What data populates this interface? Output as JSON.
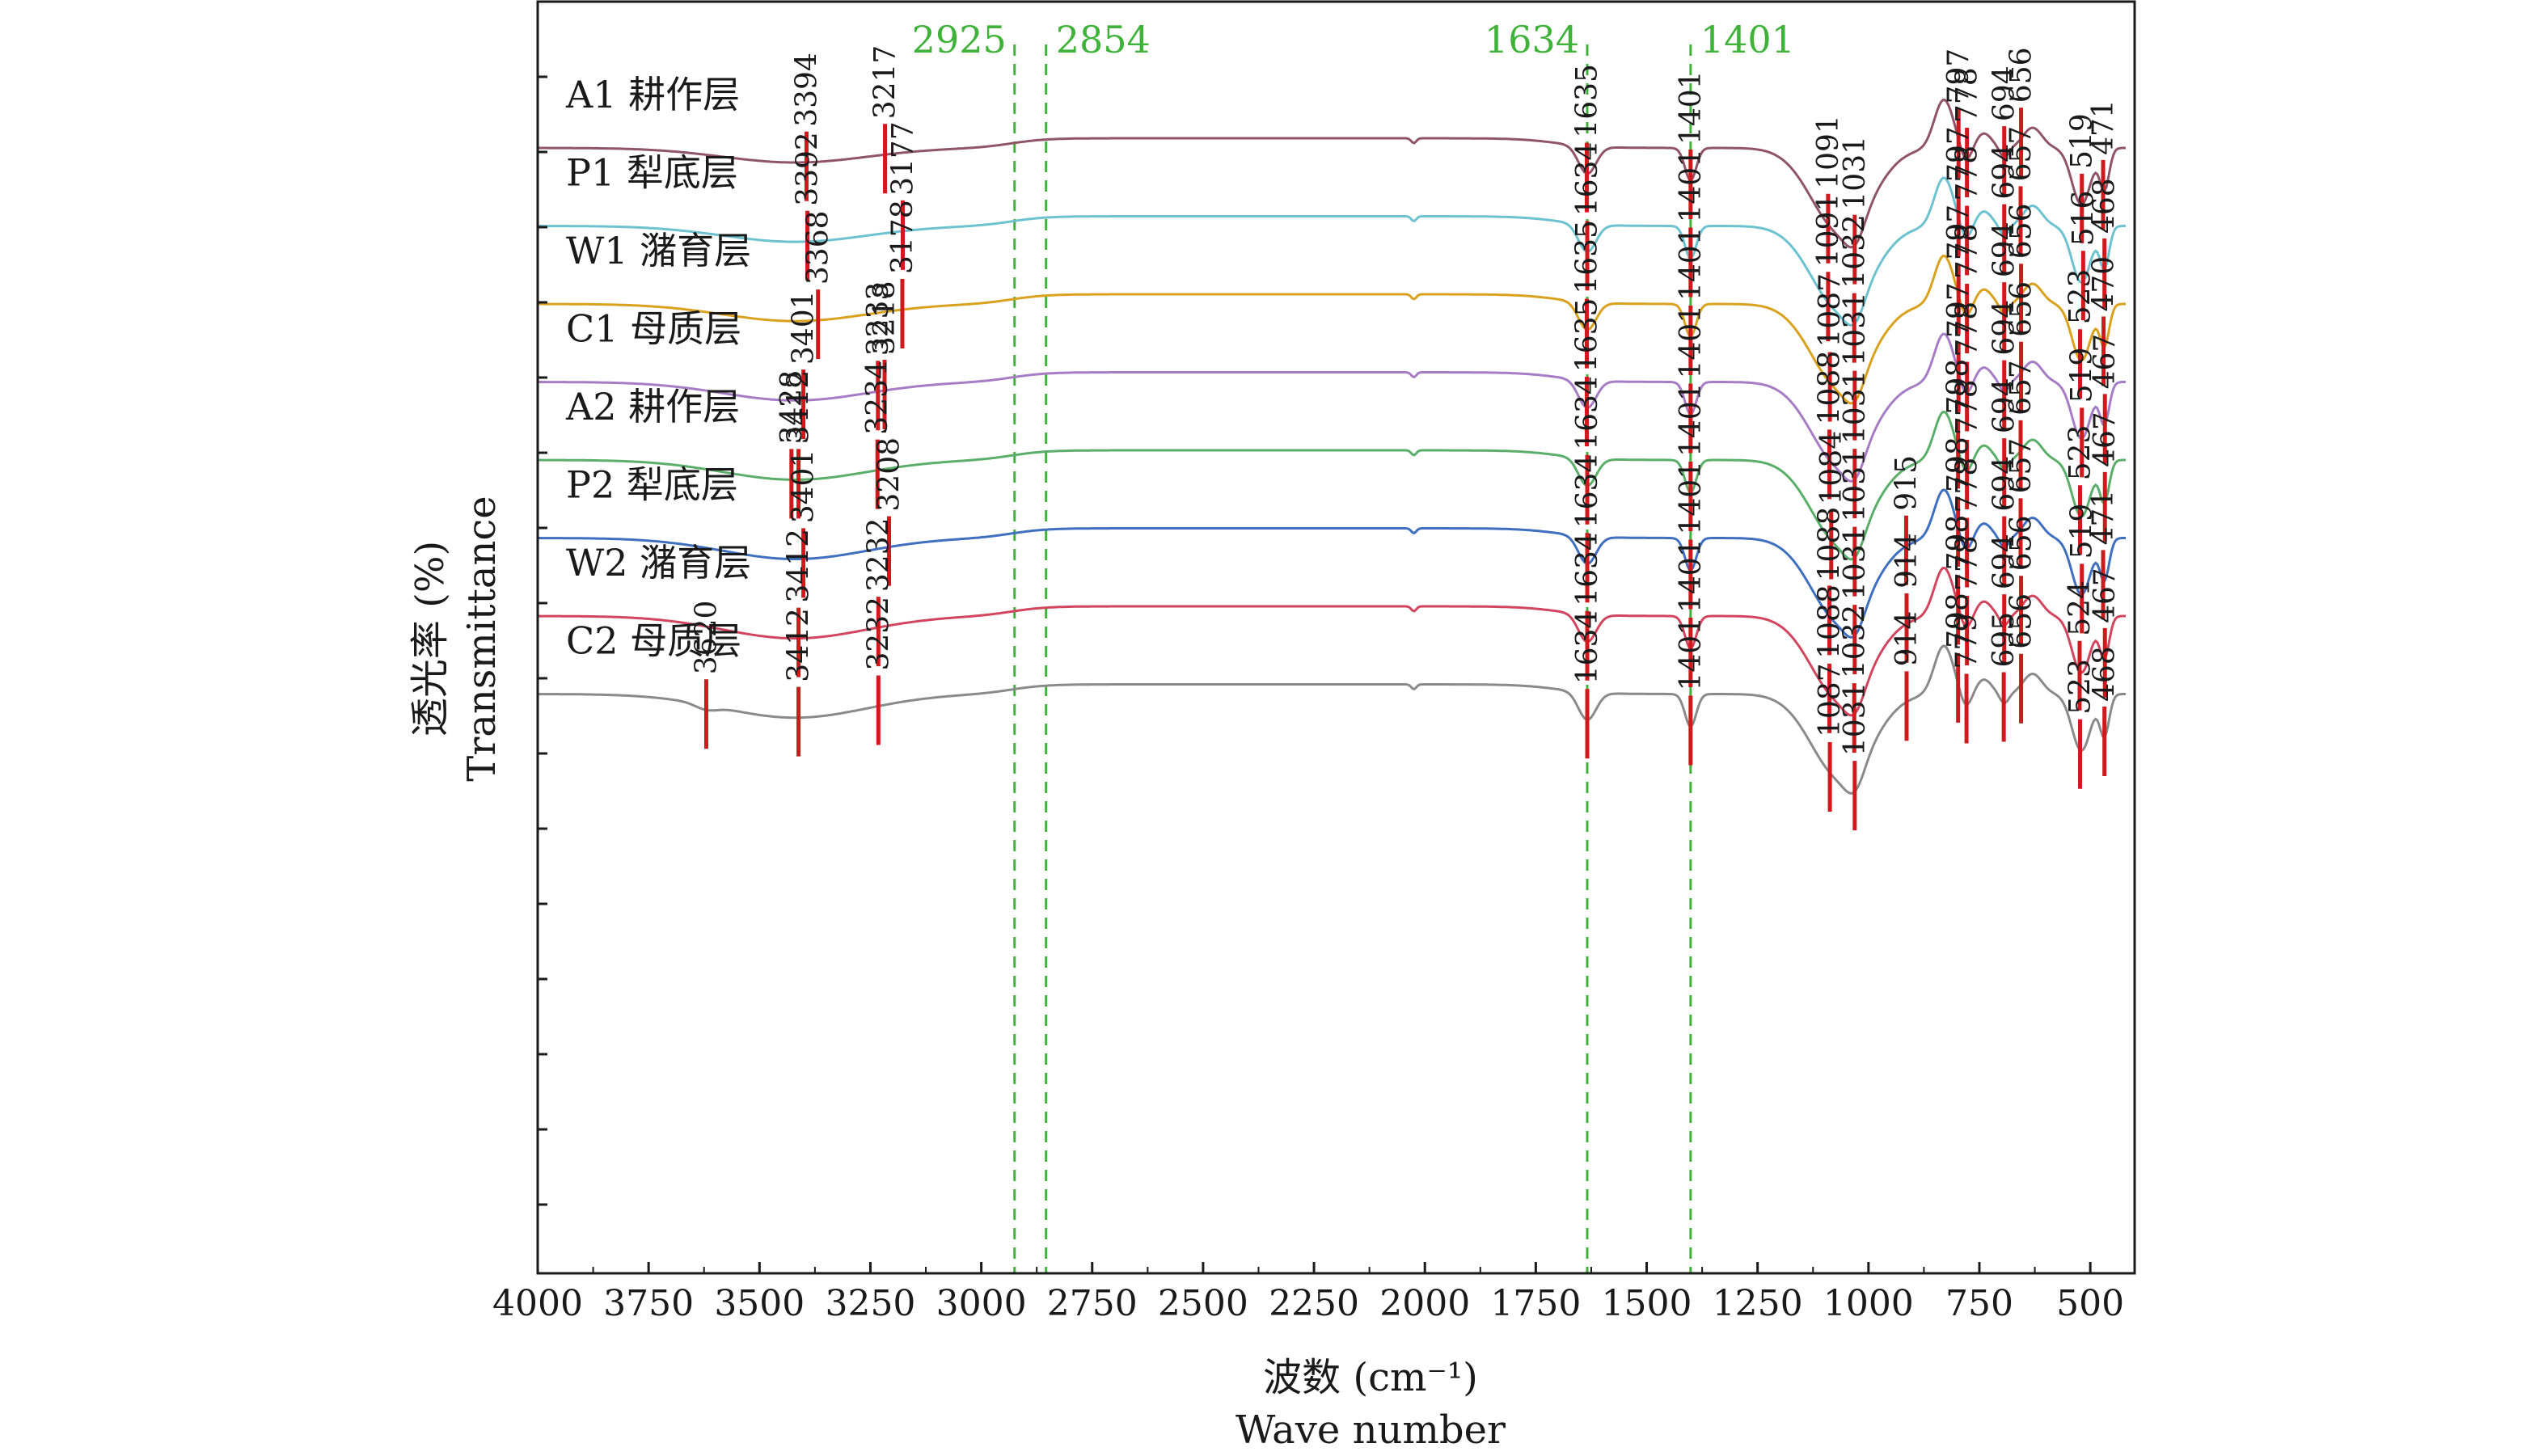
{
  "chart_data": {
    "type": "line",
    "xlabel_cn": "波数 (cm⁻¹)",
    "xlabel_en": "Wave number",
    "ylabel_cn": "透光率 (%)",
    "ylabel_en": "Transmittance",
    "xlim": [
      4000,
      400
    ],
    "x_reversed": true,
    "x_ticks": [
      4000,
      3750,
      3500,
      3250,
      3000,
      2750,
      2500,
      2250,
      2000,
      1750,
      1500,
      1250,
      1000,
      750,
      500
    ],
    "x_tick_labels": [
      "4000",
      "3750",
      "3500",
      "3250",
      "3000",
      "2750",
      "2500",
      "2250",
      "2000",
      "1750",
      "1500",
      "1250",
      "1000",
      "750",
      "500"
    ],
    "y_tick_count": 16,
    "grid": false,
    "reference_lines": [
      {
        "x": 2925,
        "label": "2925",
        "color": "#3fb23a"
      },
      {
        "x": 2854,
        "label": "2854",
        "color": "#3fb23a"
      },
      {
        "x": 1634,
        "label": "1634",
        "color": "#3fb23a"
      },
      {
        "x": 1401,
        "label": "1401",
        "color": "#3fb23a"
      }
    ],
    "series": [
      {
        "name": "A1 耕作层",
        "color": "#8f5566",
        "offset": 0,
        "peaks": [
          "3394",
          "3217",
          "1635",
          "1401",
          "1091",
          "1031",
          "797",
          "778",
          "694",
          "656",
          "519",
          "471"
        ]
      },
      {
        "name": "P1 犁底层",
        "color": "#6cc2cf",
        "offset": 1,
        "peaks": [
          "3392",
          "3177",
          "1634",
          "1401",
          "1091",
          "1032",
          "797",
          "778",
          "694",
          "657",
          "516",
          "468"
        ]
      },
      {
        "name": "W1 潴育层",
        "color": "#d9a21e",
        "offset": 2,
        "peaks": [
          "3368",
          "3178",
          "1635",
          "1401",
          "1087",
          "1031",
          "797",
          "778",
          "694",
          "656",
          "523",
          "470"
        ]
      },
      {
        "name": "C1 母质层",
        "color": "#a67cc4",
        "offset": 3,
        "peaks": [
          "3401",
          "3233",
          "3218",
          "1635",
          "1401",
          "1088",
          "1031",
          "797",
          "778",
          "694",
          "656",
          "519",
          "467"
        ]
      },
      {
        "name": "A2 耕作层",
        "color": "#5aae6a",
        "offset": 4,
        "peaks": [
          "3428",
          "3412",
          "3234",
          "1634",
          "1401",
          "1084",
          "1031",
          "798",
          "778",
          "694",
          "657",
          "523",
          "467"
        ]
      },
      {
        "name": "P2 犁底层",
        "color": "#3f6fbf",
        "offset": 5,
        "peaks": [
          "3401",
          "3208",
          "1634",
          "1401",
          "1088",
          "1031",
          "915",
          "798",
          "778",
          "694",
          "657",
          "519",
          "471"
        ]
      },
      {
        "name": "W2 潴育层",
        "color": "#d2455f",
        "offset": 6,
        "peaks": [
          "3412",
          "3232",
          "1634",
          "1401",
          "1088",
          "1032",
          "914",
          "798",
          "778",
          "694",
          "656",
          "524",
          "467"
        ]
      },
      {
        "name": "C2 母质层",
        "color": "#8a8a8a",
        "offset": 7,
        "peaks": [
          "3620",
          "3412",
          "3232",
          "1634",
          "1401",
          "1087",
          "1031",
          "914",
          "798",
          "779",
          "695",
          "656",
          "523",
          "468"
        ]
      }
    ]
  },
  "colors": {
    "axis": "#1a1a1a",
    "reference_line": "#3fb23a",
    "peak_marker": "#d0191c"
  }
}
